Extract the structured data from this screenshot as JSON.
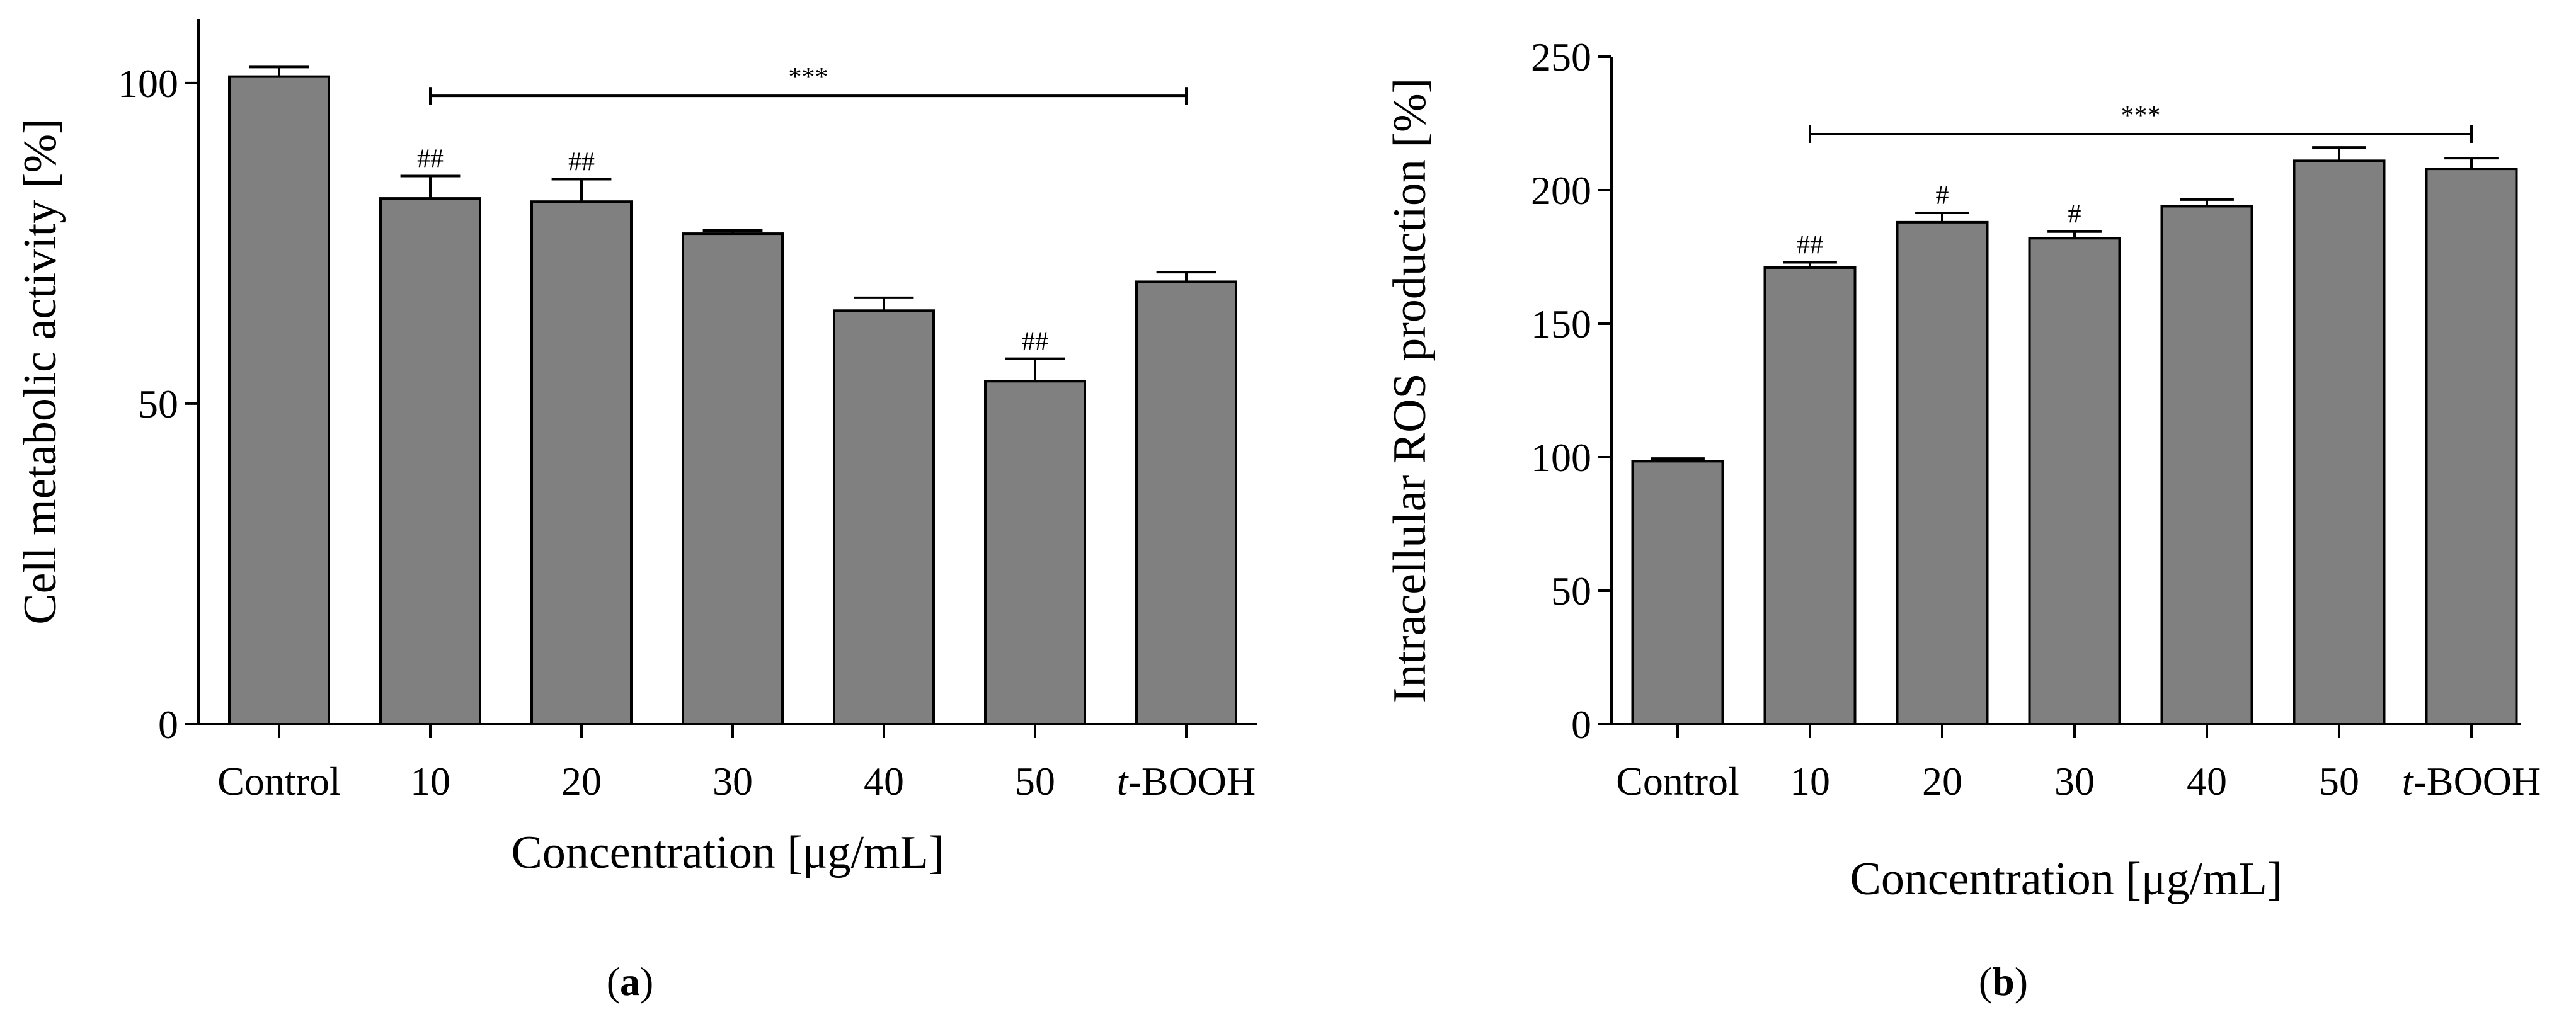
{
  "chart_data": [
    {
      "type": "bar",
      "panel": "a",
      "panel_label_open": "(",
      "panel_label_close": ")",
      "categories": [
        "Control",
        "10",
        "20",
        "30",
        "40",
        "50",
        "t-BOOH"
      ],
      "category_labels": [
        {
          "italic": "",
          "rest": "Control"
        },
        {
          "italic": "",
          "rest": "10"
        },
        {
          "italic": "",
          "rest": "20"
        },
        {
          "italic": "",
          "rest": "30"
        },
        {
          "italic": "",
          "rest": "40"
        },
        {
          "italic": "",
          "rest": "50"
        },
        {
          "italic": "t",
          "rest": "-BOOH"
        }
      ],
      "values": [
        101,
        82,
        81.5,
        76.5,
        64.5,
        53.5,
        69
      ],
      "errors": [
        1.5,
        3.5,
        3.5,
        0.5,
        2,
        3.5,
        1.5
      ],
      "annotations": [
        "",
        "##",
        "##",
        "",
        "",
        "##",
        ""
      ],
      "significance_bracket": {
        "from": "10",
        "to": "t-BOOH",
        "label": "***",
        "y": 98
      },
      "xlabel": "Concentration [μg/mL]",
      "ylabel": "Cell metabolic activity [%]",
      "ylim": [
        0,
        110
      ],
      "yticks": [
        0,
        50,
        100
      ],
      "grid": false
    },
    {
      "type": "bar",
      "panel": "b",
      "panel_label_open": "(",
      "panel_label_close": ")",
      "categories": [
        "Control",
        "10",
        "20",
        "30",
        "40",
        "50",
        "t-BOOH"
      ],
      "category_labels": [
        {
          "italic": "",
          "rest": "Control"
        },
        {
          "italic": "",
          "rest": "10"
        },
        {
          "italic": "",
          "rest": "20"
        },
        {
          "italic": "",
          "rest": "30"
        },
        {
          "italic": "",
          "rest": "40"
        },
        {
          "italic": "",
          "rest": "50"
        },
        {
          "italic": "t",
          "rest": "-BOOH"
        }
      ],
      "values": [
        98.5,
        171,
        188,
        182,
        194,
        211,
        208
      ],
      "errors": [
        1,
        2,
        3.5,
        2.5,
        2.5,
        5,
        4
      ],
      "annotations": [
        "",
        "##",
        "#",
        "#",
        "",
        "",
        ""
      ],
      "significance_bracket": {
        "from": "10",
        "to": "t-BOOH",
        "label": "***",
        "y": 221
      },
      "xlabel": "Concentration [μg/mL]",
      "ylabel": "Intracellular ROS production [%]",
      "ylim": [
        0,
        250
      ],
      "yticks": [
        0,
        50,
        100,
        150,
        200,
        250
      ],
      "grid": false
    }
  ]
}
